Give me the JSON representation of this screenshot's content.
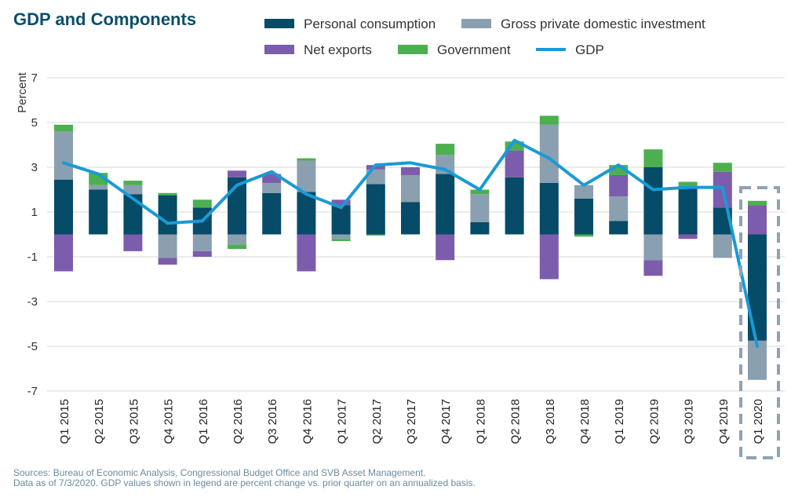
{
  "chart_data": {
    "type": "bar",
    "title": "GDP and Components",
    "ylabel": "Percent",
    "xlabel": "",
    "ylim": [
      -7,
      7
    ],
    "yticks": [
      7,
      5,
      3,
      1,
      -1,
      -3,
      -5,
      -7
    ],
    "categories": [
      "Q1 2015",
      "Q2 2015",
      "Q3 2015",
      "Q4 2015",
      "Q1 2016",
      "Q2 2016",
      "Q3 2016",
      "Q4 2016",
      "Q1 2017",
      "Q2 2017",
      "Q3 2017",
      "Q4 2017",
      "Q1 2018",
      "Q2 2018",
      "Q3 2018",
      "Q4 2018",
      "Q1 2019",
      "Q2 2019",
      "Q3 2019",
      "Q4 2019",
      "Q1 2020"
    ],
    "series": [
      {
        "name": "Personal consumption",
        "color": "#064b68",
        "values": [
          2.45,
          2.0,
          1.8,
          1.75,
          1.2,
          2.55,
          1.85,
          1.9,
          1.3,
          2.25,
          1.45,
          2.7,
          0.55,
          2.55,
          2.3,
          1.6,
          0.6,
          3.0,
          2.05,
          1.2,
          -4.75
        ]
      },
      {
        "name": "Gross private domestic investment",
        "color": "#8a9fb0",
        "values": [
          2.15,
          0.2,
          0.4,
          -1.05,
          -0.75,
          -0.45,
          0.45,
          1.4,
          -0.2,
          0.65,
          1.2,
          0.85,
          1.25,
          0.0,
          2.6,
          0.6,
          1.1,
          -1.15,
          0.0,
          -1.05,
          -1.75
        ]
      },
      {
        "name": "Net exports",
        "color": "#7c5cac",
        "values": [
          -1.65,
          0.0,
          -0.75,
          -0.3,
          -0.25,
          0.3,
          0.4,
          -1.65,
          0.25,
          0.2,
          0.35,
          -1.15,
          0.0,
          1.2,
          -2.0,
          0.0,
          0.95,
          -0.7,
          -0.2,
          1.6,
          1.3
        ]
      },
      {
        "name": "Government",
        "color": "#4caf50",
        "values": [
          0.3,
          0.55,
          0.2,
          0.1,
          0.35,
          -0.2,
          0.0,
          0.1,
          -0.1,
          -0.05,
          0.0,
          0.5,
          0.2,
          0.4,
          0.4,
          -0.1,
          0.45,
          0.8,
          0.3,
          0.4,
          0.2
        ]
      },
      {
        "name": "GDP",
        "color": "#1a9ad6",
        "type": "line",
        "values": [
          3.2,
          2.7,
          1.6,
          0.5,
          0.6,
          2.2,
          2.8,
          1.8,
          1.2,
          3.1,
          3.2,
          2.9,
          2.0,
          4.2,
          3.4,
          2.2,
          3.1,
          2.0,
          2.1,
          2.1,
          -5.0
        ]
      }
    ],
    "highlight": "Q1 2020",
    "legend": [
      "Personal consumption",
      "Gross private domestic investment",
      "Net exports",
      "Government",
      "GDP"
    ],
    "legend_position": "top-right",
    "grid": true
  },
  "footer": {
    "sources": "Sources: Bureau of Economic Analysis, Congressional Budget Office and SVB Asset Management.",
    "note": "Data as of 7/3/2020. GDP values shown in legend are percent change vs. prior quarter on an annualized basis."
  }
}
